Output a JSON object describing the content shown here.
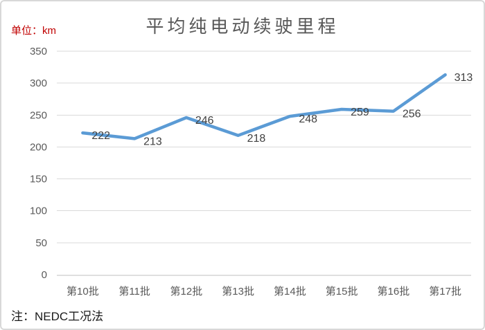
{
  "chart_data": {
    "type": "line",
    "title": "平均纯电动续驶里程",
    "unit_label": "单位：km",
    "note": "注：NEDC工况法",
    "categories": [
      "第10批",
      "第11批",
      "第12批",
      "第13批",
      "第14批",
      "第15批",
      "第16批",
      "第17批"
    ],
    "values": [
      222,
      213,
      246,
      218,
      248,
      259,
      256,
      313
    ],
    "data_labels_visible": true,
    "xlabel": "",
    "ylabel": "单位：km",
    "ylim": [
      0,
      350
    ],
    "yticks": [
      0,
      50,
      100,
      150,
      200,
      250,
      300,
      350
    ],
    "grid": true,
    "legend": "none",
    "colors": {
      "line": "#5B9BD5",
      "grid": "#D9D9D9",
      "axis": "#BFBFBF",
      "axis_text": "#595959",
      "data_label_text": "#404040",
      "title_text": "#595959",
      "unit_text": "#C00000",
      "note_text": "#1A1A1A",
      "frame_border": "#D8D8D8",
      "background": "#FFFFFF"
    }
  }
}
